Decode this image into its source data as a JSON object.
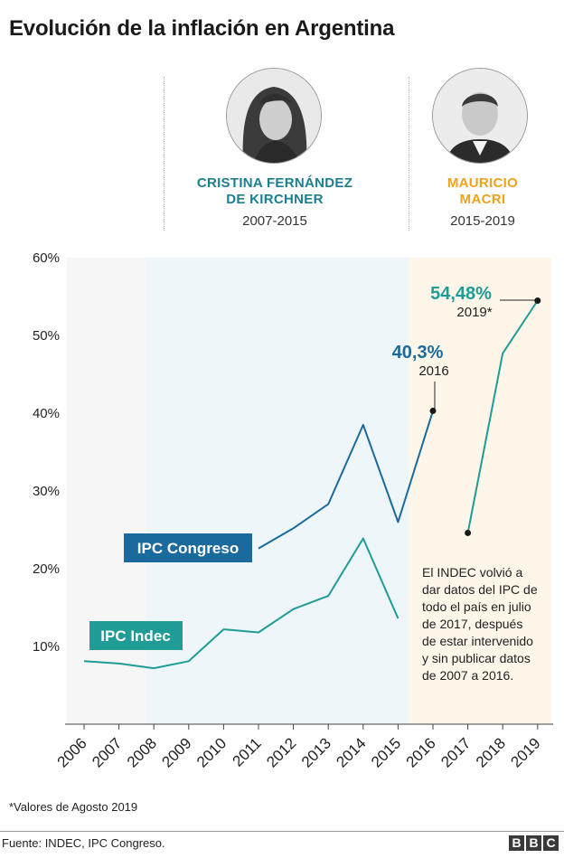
{
  "title": "Evolución de la inflación en Argentina",
  "presidents": [
    {
      "name_line1": "CRISTINA FERNÁNDEZ",
      "name_line2": "DE KIRCHNER",
      "years": "2007-2015",
      "color": "#1b7f8f"
    },
    {
      "name_line1": "MAURICIO",
      "name_line2": "MACRI",
      "years": "2015-2019",
      "color": "#f0a21c"
    }
  ],
  "chart_data": {
    "type": "line",
    "x": [
      2006,
      2007,
      2008,
      2009,
      2010,
      2011,
      2012,
      2013,
      2014,
      2015,
      2016,
      2017,
      2018,
      2019
    ],
    "ylim": [
      0,
      60
    ],
    "yticks": [
      "10%",
      "20%",
      "30%",
      "40%",
      "50%",
      "60%"
    ],
    "ytick_values": [
      10,
      20,
      30,
      40,
      50,
      60
    ],
    "grid": false,
    "periods": [
      {
        "from": 2005.5,
        "to": 2007.8,
        "color": "#f6f6f6"
      },
      {
        "from": 2007.8,
        "to": 2015.3,
        "color": "#eef6fa"
      },
      {
        "from": 2015.3,
        "to": 2019.4,
        "color": "#fdf6e9"
      }
    ],
    "series": [
      {
        "name": "IPC Congreso",
        "color": "#1b6a9e",
        "segments": [
          [
            [
              2011,
              22.6
            ],
            [
              2012,
              25.2
            ],
            [
              2013,
              28.3
            ],
            [
              2014,
              38.5
            ],
            [
              2015,
              26.0
            ],
            [
              2016,
              40.3
            ]
          ]
        ]
      },
      {
        "name": "IPC Indec",
        "color": "#1f9c96",
        "segments": [
          [
            [
              2006,
              8.1
            ],
            [
              2007,
              7.8
            ],
            [
              2008,
              7.2
            ],
            [
              2009,
              8.1
            ],
            [
              2010,
              12.2
            ],
            [
              2011,
              11.8
            ],
            [
              2012,
              14.8
            ],
            [
              2013,
              16.5
            ],
            [
              2014,
              23.9
            ],
            [
              2015,
              13.6
            ]
          ],
          [
            [
              2017,
              24.6
            ],
            [
              2018,
              47.7
            ],
            [
              2019,
              54.48
            ]
          ]
        ]
      }
    ],
    "markers": [
      [
        2016,
        40.3
      ],
      [
        2017,
        24.6
      ],
      [
        2019,
        54.48
      ]
    ],
    "annotations": {
      "congreso_value": "40,3%",
      "congreso_year": "2016",
      "indec_value": "54,48%",
      "indec_year": "2019*",
      "note_lines": [
        "El INDEC volvió a",
        "dar datos del IPC de",
        "todo el país en julio",
        "de 2017, después",
        "de estar intervenido",
        "y sin publicar datos",
        "de 2007 a 2016."
      ]
    }
  },
  "footnote": "*Valores de Agosto 2019",
  "source": "Fuente: INDEC, IPC Congreso.",
  "logo_letters": [
    "B",
    "B",
    "C"
  ]
}
